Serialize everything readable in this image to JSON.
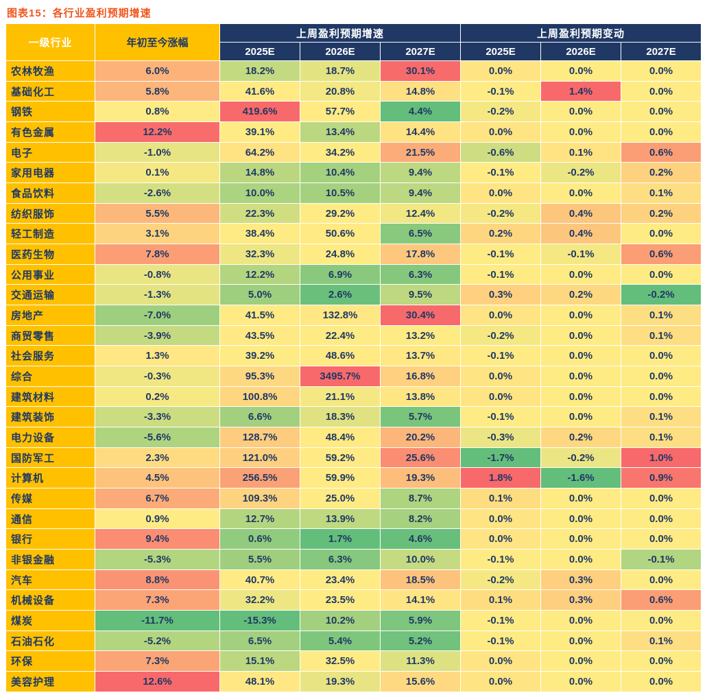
{
  "title": "图表15：各行业盈利预期增速",
  "colors": {
    "title_color": "#F0561E",
    "header_bg": "#203864",
    "header_text": "#FFFFFF",
    "industry_bg": "#FFC000",
    "cell_text": "#1F3864",
    "scale_min": "#63BE7B",
    "scale_mid": "#FFEB84",
    "scale_max": "#F8696B"
  },
  "table": {
    "header": {
      "industry": "一级行业",
      "ytd": "年初至今涨幅",
      "growth_group": "上周盈利预期增速",
      "change_group": "上周盈利预期变动",
      "years": [
        "2025E",
        "2026E",
        "2027E"
      ]
    }
  },
  "chart_data": {
    "type": "table",
    "title": "图表15：各行业盈利预期增速",
    "unit": "%",
    "column_groups": [
      "上周盈利预期增速",
      "上周盈利预期变动"
    ],
    "columns": [
      "一级行业",
      "年初至今涨幅",
      "2025E",
      "2026E",
      "2027E",
      "2025E",
      "2026E",
      "2027E"
    ],
    "color_scale": {
      "min": "#63BE7B",
      "mid": "#FFEB84",
      "max": "#F8696B",
      "midpoint": "median-per-column"
    },
    "rows": [
      {
        "industry": "农林牧渔",
        "ytd": 6.0,
        "growth": [
          18.2,
          18.7,
          30.1
        ],
        "change": [
          0.0,
          0.0,
          0.0
        ]
      },
      {
        "industry": "基础化工",
        "ytd": 5.8,
        "growth": [
          41.6,
          20.8,
          14.8
        ],
        "change": [
          -0.1,
          1.4,
          0.0
        ]
      },
      {
        "industry": "钢铁",
        "ytd": 0.8,
        "growth": [
          419.6,
          57.7,
          4.4
        ],
        "change": [
          -0.2,
          0.0,
          0.0
        ]
      },
      {
        "industry": "有色金属",
        "ytd": 12.2,
        "growth": [
          39.1,
          13.4,
          14.4
        ],
        "change": [
          0.0,
          0.0,
          0.0
        ]
      },
      {
        "industry": "电子",
        "ytd": -1.0,
        "growth": [
          64.2,
          34.2,
          21.5
        ],
        "change": [
          -0.6,
          0.1,
          0.6
        ]
      },
      {
        "industry": "家用电器",
        "ytd": 0.1,
        "growth": [
          14.8,
          10.4,
          9.4
        ],
        "change": [
          -0.1,
          -0.2,
          0.2
        ]
      },
      {
        "industry": "食品饮料",
        "ytd": -2.6,
        "growth": [
          10.0,
          10.5,
          9.4
        ],
        "change": [
          0.0,
          0.0,
          0.1
        ]
      },
      {
        "industry": "纺织服饰",
        "ytd": 5.5,
        "growth": [
          22.3,
          29.2,
          12.4
        ],
        "change": [
          -0.2,
          0.4,
          0.2
        ]
      },
      {
        "industry": "轻工制造",
        "ytd": 3.1,
        "growth": [
          38.4,
          50.6,
          6.5
        ],
        "change": [
          0.2,
          0.4,
          0.0
        ]
      },
      {
        "industry": "医药生物",
        "ytd": 7.8,
        "growth": [
          32.3,
          24.8,
          17.8
        ],
        "change": [
          -0.1,
          -0.1,
          0.6
        ]
      },
      {
        "industry": "公用事业",
        "ytd": -0.8,
        "growth": [
          12.2,
          6.9,
          6.3
        ],
        "change": [
          -0.1,
          0.0,
          0.0
        ]
      },
      {
        "industry": "交通运输",
        "ytd": -1.3,
        "growth": [
          5.0,
          2.6,
          9.5
        ],
        "change": [
          0.3,
          0.2,
          -0.2
        ]
      },
      {
        "industry": "房地产",
        "ytd": -7.0,
        "growth": [
          41.5,
          132.8,
          30.4
        ],
        "change": [
          0.0,
          0.0,
          0.1
        ]
      },
      {
        "industry": "商贸零售",
        "ytd": -3.9,
        "growth": [
          43.5,
          22.4,
          13.2
        ],
        "change": [
          -0.2,
          0.0,
          0.1
        ]
      },
      {
        "industry": "社会服务",
        "ytd": 1.3,
        "growth": [
          39.2,
          48.6,
          13.7
        ],
        "change": [
          -0.1,
          0.0,
          0.0
        ]
      },
      {
        "industry": "综合",
        "ytd": -0.3,
        "growth": [
          95.3,
          3495.7,
          16.8
        ],
        "change": [
          0.0,
          0.0,
          0.0
        ]
      },
      {
        "industry": "建筑材料",
        "ytd": 0.2,
        "growth": [
          100.8,
          21.1,
          13.8
        ],
        "change": [
          0.0,
          0.0,
          0.0
        ]
      },
      {
        "industry": "建筑装饰",
        "ytd": -3.3,
        "growth": [
          6.6,
          18.3,
          5.7
        ],
        "change": [
          -0.1,
          0.0,
          0.1
        ]
      },
      {
        "industry": "电力设备",
        "ytd": -5.6,
        "growth": [
          128.7,
          48.4,
          20.2
        ],
        "change": [
          -0.3,
          0.2,
          0.1
        ]
      },
      {
        "industry": "国防军工",
        "ytd": 2.3,
        "growth": [
          121.0,
          59.2,
          25.6
        ],
        "change": [
          -1.7,
          -0.2,
          1.0
        ]
      },
      {
        "industry": "计算机",
        "ytd": 4.5,
        "growth": [
          256.5,
          59.9,
          19.3
        ],
        "change": [
          1.8,
          -1.6,
          0.9
        ]
      },
      {
        "industry": "传媒",
        "ytd": 6.7,
        "growth": [
          109.3,
          25.0,
          8.7
        ],
        "change": [
          0.1,
          0.0,
          0.0
        ]
      },
      {
        "industry": "通信",
        "ytd": 0.9,
        "growth": [
          12.7,
          13.9,
          8.2
        ],
        "change": [
          0.0,
          0.0,
          0.0
        ]
      },
      {
        "industry": "银行",
        "ytd": 9.4,
        "growth": [
          0.6,
          1.7,
          4.6
        ],
        "change": [
          0.0,
          0.0,
          0.0
        ]
      },
      {
        "industry": "非银金融",
        "ytd": -5.3,
        "growth": [
          5.5,
          6.3,
          10.0
        ],
        "change": [
          -0.1,
          0.0,
          -0.1
        ]
      },
      {
        "industry": "汽车",
        "ytd": 8.8,
        "growth": [
          40.7,
          23.4,
          18.5
        ],
        "change": [
          -0.2,
          0.3,
          0.0
        ]
      },
      {
        "industry": "机械设备",
        "ytd": 7.3,
        "growth": [
          32.2,
          23.5,
          14.1
        ],
        "change": [
          0.1,
          0.3,
          0.6
        ]
      },
      {
        "industry": "煤炭",
        "ytd": -11.7,
        "growth": [
          -15.3,
          10.2,
          5.9
        ],
        "change": [
          -0.1,
          0.0,
          0.0
        ]
      },
      {
        "industry": "石油石化",
        "ytd": -5.2,
        "growth": [
          6.5,
          5.4,
          5.2
        ],
        "change": [
          -0.1,
          0.0,
          0.1
        ]
      },
      {
        "industry": "环保",
        "ytd": 7.3,
        "growth": [
          15.1,
          32.5,
          11.3
        ],
        "change": [
          0.0,
          0.0,
          0.0
        ]
      },
      {
        "industry": "美容护理",
        "ytd": 12.6,
        "growth": [
          48.1,
          19.3,
          15.6
        ],
        "change": [
          0.0,
          0.0,
          0.0
        ]
      }
    ]
  }
}
